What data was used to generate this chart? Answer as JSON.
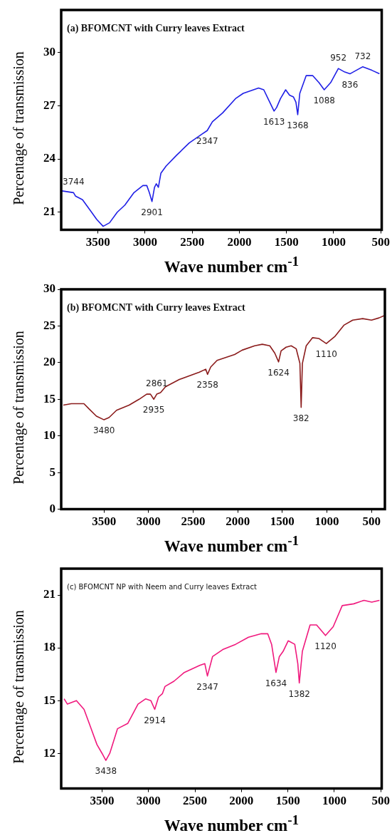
{
  "chart_data": [
    {
      "type": "line",
      "title": "(a) BFOMCNT with Curry leaves Extract",
      "xlabel": "Wave number cm$^{-1}$",
      "ylabel": "Percentage of transmission",
      "color": "#1f1fe6",
      "marker": "none",
      "xlim": [
        3890,
        490
      ],
      "xticks": [
        3500,
        3000,
        2500,
        2000,
        1500,
        1000,
        500
      ],
      "ylim": [
        20,
        32.4
      ],
      "yticks": [
        21,
        24,
        27,
        30
      ],
      "x": [
        3882,
        3759,
        3737,
        3664,
        3568,
        3514,
        3445,
        3377,
        3295,
        3214,
        3118,
        3023,
        2982,
        2955,
        2927,
        2900,
        2881,
        2859,
        2832,
        2777,
        2668,
        2532,
        2396,
        2341,
        2286,
        2177,
        2041,
        1959,
        1796,
        1741,
        1687,
        1632,
        1605,
        1564,
        1509,
        1468,
        1427,
        1400,
        1381,
        1359,
        1291,
        1223,
        1155,
        1100,
        1032,
        950,
        882,
        827,
        759,
        691,
        595,
        514
      ],
      "values": [
        22.2,
        22.1,
        21.9,
        21.7,
        21.0,
        20.6,
        20.2,
        20.4,
        21.0,
        21.4,
        22.1,
        22.5,
        22.5,
        22.1,
        21.6,
        22.4,
        22.6,
        22.4,
        23.2,
        23.6,
        24.2,
        24.9,
        25.4,
        25.6,
        26.1,
        26.6,
        27.4,
        27.7,
        28.0,
        27.9,
        27.3,
        26.7,
        26.9,
        27.4,
        27.9,
        27.6,
        27.5,
        27.2,
        26.5,
        27.7,
        28.7,
        28.7,
        28.3,
        27.9,
        28.3,
        29.1,
        28.9,
        28.8,
        29.0,
        29.2,
        29.0,
        28.8
      ],
      "annotations": [
        {
          "text": "3744",
          "x": 3759,
          "y": 22.1
        },
        {
          "text": "2901",
          "x": 2927,
          "y": 21.6
        },
        {
          "text": "2347",
          "x": 2341,
          "y": 25.6
        },
        {
          "text": "1613",
          "x": 1632,
          "y": 26.7
        },
        {
          "text": "1368",
          "x": 1381,
          "y": 26.5
        },
        {
          "text": "1088",
          "x": 1100,
          "y": 27.9
        },
        {
          "text": "952",
          "x": 950,
          "y": 29.1
        },
        {
          "text": "836",
          "x": 827,
          "y": 28.8
        },
        {
          "text": "732",
          "x": 691,
          "y": 29.2
        }
      ]
    },
    {
      "type": "line",
      "title": "(b) BFOMCNT with Curry leaves Extract",
      "xlabel": "Wave number cm$^{-1}$",
      "ylabel": "Percentage of transmission",
      "color": "#8b1c1c",
      "marker": "none",
      "xlim": [
        3980,
        350
      ],
      "xticks": [
        3500,
        3000,
        2500,
        2000,
        1500,
        1000,
        500
      ],
      "ylim": [
        0,
        30
      ],
      "yticks": [
        0,
        5,
        10,
        15,
        20,
        25,
        30
      ],
      "x": [
        3956,
        3866,
        3725,
        3669,
        3585,
        3500,
        3444,
        3359,
        3218,
        3106,
        3021,
        2979,
        2942,
        2908,
        2866,
        2810,
        2655,
        2430,
        2359,
        2339,
        2303,
        2232,
        2035,
        1951,
        1810,
        1725,
        1641,
        1585,
        1542,
        1514,
        1458,
        1401,
        1345,
        1303,
        1289,
        1275,
        1232,
        1162,
        1092,
        1007,
        908,
        810,
        711,
        599,
        500,
        416,
        359
      ],
      "values": [
        14.2,
        14.4,
        14.4,
        13.7,
        12.7,
        12.2,
        12.5,
        13.5,
        14.2,
        15.0,
        15.7,
        15.7,
        15.0,
        15.7,
        15.9,
        16.7,
        17.7,
        18.7,
        19.1,
        18.4,
        19.4,
        20.3,
        21.1,
        21.7,
        22.3,
        22.5,
        22.3,
        21.3,
        20.1,
        21.6,
        22.1,
        22.3,
        21.9,
        19.9,
        13.9,
        19.9,
        22.3,
        23.4,
        23.3,
        22.6,
        23.6,
        25.1,
        25.8,
        26.0,
        25.8,
        26.1,
        26.4
      ],
      "annotations": [
        {
          "text": "3480",
          "x": 3500,
          "y": 12.2
        },
        {
          "text": "2935",
          "x": 2942,
          "y": 15.0
        },
        {
          "text": "2861",
          "x": 2908,
          "y": 15.7
        },
        {
          "text": "2358",
          "x": 2339,
          "y": 18.4
        },
        {
          "text": "1624",
          "x": 1542,
          "y": 20.1
        },
        {
          "text": "382",
          "x": 1289,
          "y": 13.9
        },
        {
          "text": "1110",
          "x": 1007,
          "y": 22.6
        }
      ]
    },
    {
      "type": "line",
      "title": "(c) BFOMCNT NP with Neem and Curry leaves Extract",
      "xlabel": "Wave number cm$^{-1}$",
      "ylabel": "Percentage of transmission",
      "color": "#f0197d",
      "marker": "none",
      "xlim": [
        3940,
        490
      ],
      "xticks": [
        3500,
        3000,
        2500,
        2000,
        1500,
        1000,
        500
      ],
      "ylim": [
        10,
        22.5
      ],
      "yticks": [
        12,
        15,
        18,
        21
      ],
      "x": [
        3909,
        3873,
        3776,
        3694,
        3624,
        3555,
        3500,
        3459,
        3417,
        3334,
        3224,
        3113,
        3030,
        2975,
        2933,
        2892,
        2850,
        2823,
        2726,
        2615,
        2449,
        2394,
        2366,
        2311,
        2201,
        2062,
        1924,
        1786,
        1717,
        1675,
        1628,
        1592,
        1551,
        1496,
        1426,
        1393,
        1377,
        1344,
        1261,
        1191,
        1095,
        1012,
        915,
        791,
        680,
        597,
        514
      ],
      "values": [
        15.1,
        14.8,
        15.0,
        14.5,
        13.5,
        12.5,
        12.0,
        11.6,
        12.0,
        13.4,
        13.7,
        14.8,
        15.1,
        15.0,
        14.5,
        15.2,
        15.4,
        15.8,
        16.1,
        16.6,
        17.0,
        17.1,
        16.4,
        17.5,
        17.9,
        18.2,
        18.6,
        18.8,
        18.8,
        18.2,
        16.6,
        17.5,
        17.8,
        18.4,
        18.2,
        17.1,
        16.0,
        17.8,
        19.3,
        19.3,
        18.7,
        19.2,
        20.4,
        20.5,
        20.7,
        20.6,
        20.7
      ],
      "annotations": [
        {
          "text": "3438",
          "x": 3459,
          "y": 11.6
        },
        {
          "text": "2914",
          "x": 2933,
          "y": 14.5
        },
        {
          "text": "2347",
          "x": 2366,
          "y": 16.4
        },
        {
          "text": "1634",
          "x": 1628,
          "y": 16.6
        },
        {
          "text": "1382",
          "x": 1377,
          "y": 16.0
        },
        {
          "text": "1120",
          "x": 1095,
          "y": 18.7
        }
      ]
    }
  ]
}
